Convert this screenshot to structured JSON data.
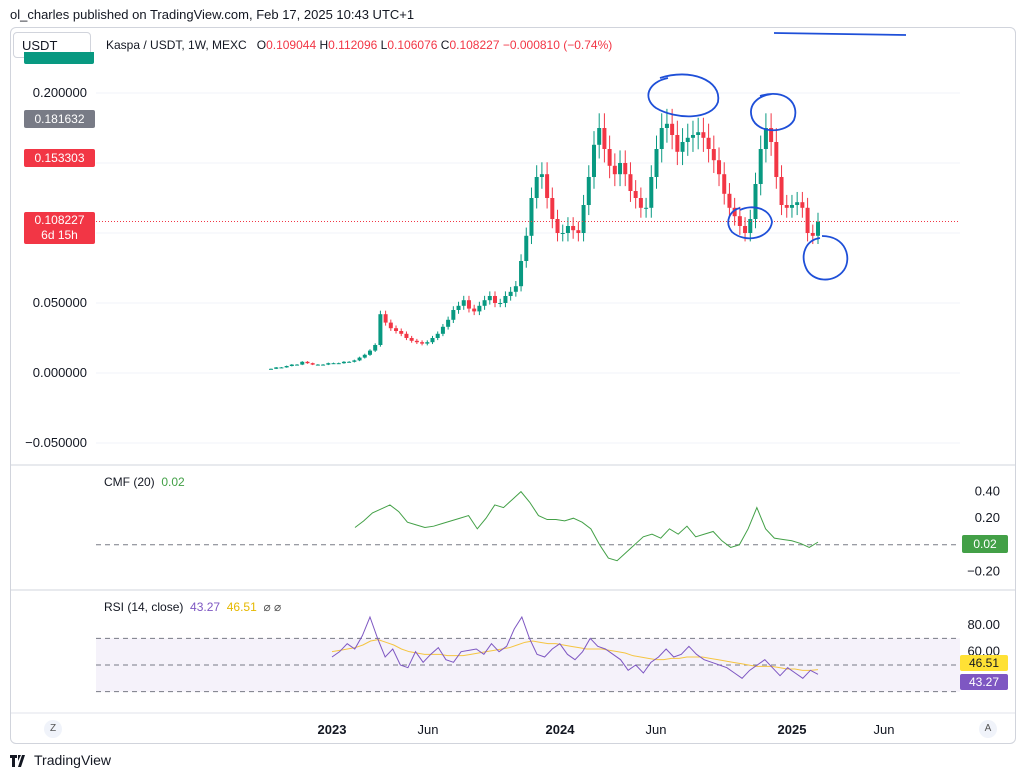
{
  "header": {
    "publish_text": "ol_charles published on TradingView.com, Feb 17, 2025 10:43 UTC+1"
  },
  "symbol_button": "USDT",
  "legend": {
    "title": "Kaspa / USDT, 1W, MEXC",
    "o_label": "O",
    "o_value": "0.109044",
    "h_label": "H",
    "h_value": "0.112096",
    "l_label": "L",
    "l_value": "0.106076",
    "c_label": "C",
    "c_value": "0.108227",
    "change": "−0.000810 (−0.74%)"
  },
  "price_badges": [
    {
      "label": "0.181632",
      "color": "#787b86"
    },
    {
      "label": "0.153303",
      "color": "#f23645"
    },
    {
      "label": "0.108227",
      "sublabel": "6d 15h",
      "color": "#f23645"
    }
  ],
  "cmf": {
    "label": "CMF (20)",
    "value": "0.02",
    "color": "#43a047",
    "badge": "0.02"
  },
  "rsi": {
    "label": "RSI (14, close)",
    "value": "43.27",
    "ma_value": "46.51",
    "extras": "⌀ ⌀",
    "badge_rsi": "43.27",
    "badge_ma": "46.51"
  },
  "footer": {
    "brand": "TradingView",
    "z_button": "Z",
    "a_button": "A"
  },
  "chart_data": [
    {
      "type": "candlestick",
      "title": "Kaspa / USDT, 1W, MEXC",
      "y_ticks": [
        "0.200000",
        "0.050000",
        "0.000000",
        "−0.050000"
      ],
      "ylim": [
        -0.05,
        0.2
      ],
      "x_ticks": [
        "2023",
        "Jun",
        "2024",
        "Jun",
        "2025",
        "Jun"
      ],
      "price_path": [
        0.003,
        0.004,
        0.004,
        0.005,
        0.006,
        0.006,
        0.008,
        0.007,
        0.006,
        0.006,
        0.006,
        0.007,
        0.007,
        0.007,
        0.008,
        0.008,
        0.009,
        0.011,
        0.013,
        0.016,
        0.02,
        0.042,
        0.036,
        0.032,
        0.03,
        0.028,
        0.025,
        0.023,
        0.022,
        0.021,
        0.022,
        0.025,
        0.028,
        0.033,
        0.038,
        0.045,
        0.048,
        0.052,
        0.046,
        0.044,
        0.048,
        0.052,
        0.055,
        0.05,
        0.05,
        0.055,
        0.058,
        0.062,
        0.08,
        0.098,
        0.125,
        0.14,
        0.142,
        0.125,
        0.11,
        0.1,
        0.1,
        0.105,
        0.102,
        0.1,
        0.12,
        0.14,
        0.163,
        0.175,
        0.16,
        0.148,
        0.142,
        0.15,
        0.142,
        0.13,
        0.125,
        0.118,
        0.118,
        0.14,
        0.16,
        0.175,
        0.178,
        0.17,
        0.158,
        0.165,
        0.168,
        0.17,
        0.172,
        0.168,
        0.16,
        0.152,
        0.142,
        0.128,
        0.118,
        0.112,
        0.105,
        0.1,
        0.11,
        0.135,
        0.16,
        0.175,
        0.165,
        0.14,
        0.12,
        0.118,
        0.12,
        0.122,
        0.118,
        0.1,
        0.098,
        0.108
      ],
      "last_price": 0.108227,
      "horizontal_lines": [
        0.108227
      ]
    },
    {
      "type": "line",
      "title": "CMF (20)",
      "y_ticks": [
        "0.40",
        "0.20",
        "−0.20"
      ],
      "ylim": [
        -0.25,
        0.45
      ],
      "values": [
        0.13,
        0.18,
        0.24,
        0.27,
        0.3,
        0.25,
        0.17,
        0.15,
        0.13,
        0.14,
        0.16,
        0.18,
        0.2,
        0.22,
        0.12,
        0.2,
        0.3,
        0.28,
        0.34,
        0.4,
        0.32,
        0.22,
        0.19,
        0.19,
        0.18,
        0.2,
        0.17,
        0.12,
        0.0,
        -0.1,
        -0.12,
        -0.06,
        0.0,
        0.06,
        0.08,
        0.05,
        0.12,
        0.08,
        0.14,
        0.06,
        0.08,
        0.1,
        0.03,
        -0.02,
        0.0,
        0.12,
        0.28,
        0.12,
        0.05,
        0.04,
        0.03,
        0.01,
        -0.02,
        0.02
      ]
    },
    {
      "type": "line",
      "title": "RSI (14, close)",
      "y_ticks": [
        "80.00",
        "60.00"
      ],
      "ylim": [
        20,
        95
      ],
      "series": [
        {
          "name": "RSI",
          "values": [
            56,
            60,
            66,
            62,
            72,
            86,
            70,
            56,
            62,
            50,
            48,
            60,
            52,
            58,
            63,
            54,
            52,
            60,
            61,
            62,
            58,
            66,
            60,
            64,
            77,
            86,
            70,
            58,
            56,
            62,
            66,
            58,
            54,
            60,
            70,
            64,
            62,
            58,
            54,
            46,
            50,
            44,
            52,
            56,
            62,
            56,
            58,
            64,
            58,
            54,
            52,
            50,
            48,
            44,
            40,
            46,
            50,
            54,
            48,
            42,
            48,
            44,
            40,
            46,
            43
          ]
        },
        {
          "name": "MA",
          "values": [
            60,
            61,
            62,
            63,
            65,
            68,
            69,
            67,
            65,
            62,
            60,
            59,
            58,
            58,
            58,
            57,
            57,
            57,
            58,
            59,
            60,
            61,
            62,
            63,
            65,
            67,
            68,
            67,
            66,
            66,
            65,
            64,
            63,
            62,
            62,
            62,
            61,
            60,
            59,
            57,
            56,
            55,
            54,
            54,
            55,
            55,
            56,
            56,
            56,
            55,
            54,
            53,
            52,
            51,
            50,
            49,
            49,
            49,
            48,
            47,
            47,
            46,
            46,
            46.5
          ]
        }
      ]
    }
  ]
}
